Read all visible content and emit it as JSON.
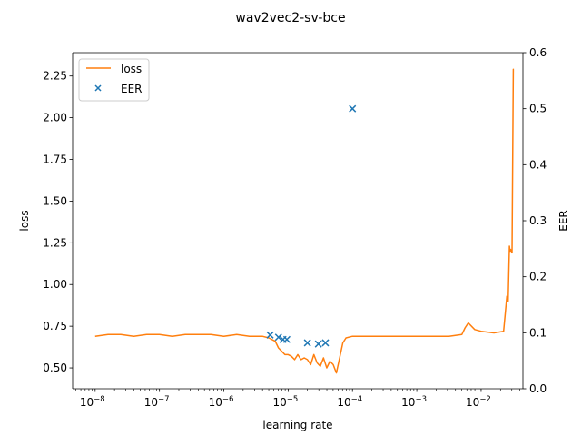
{
  "chart_data": {
    "type": "line",
    "title": "wav2vec2-sv-bce",
    "xlabel": "learning rate",
    "ylabel": "loss",
    "y2label": "EER",
    "xscale": "log",
    "xlim_log10": [
      -8.35,
      -1.35
    ],
    "ylim": [
      0.375,
      2.39
    ],
    "y2lim": [
      0.0,
      0.6
    ],
    "x_ticks": [
      {
        "exp": -8,
        "base": "10",
        "sup": "−8"
      },
      {
        "exp": -7,
        "base": "10",
        "sup": "−7"
      },
      {
        "exp": -6,
        "base": "10",
        "sup": "−6"
      },
      {
        "exp": -5,
        "base": "10",
        "sup": "−5"
      },
      {
        "exp": -4,
        "base": "10",
        "sup": "−4"
      },
      {
        "exp": -3,
        "base": "10",
        "sup": "−3"
      },
      {
        "exp": -2,
        "base": "10",
        "sup": "−2"
      }
    ],
    "y_ticks": [
      "0.50",
      "0.75",
      "1.00",
      "1.25",
      "1.50",
      "1.75",
      "2.00",
      "2.25"
    ],
    "y2_ticks": [
      "0.0",
      "0.1",
      "0.2",
      "0.3",
      "0.4",
      "0.5",
      "0.6"
    ],
    "legend": {
      "position": "top-left"
    },
    "series": [
      {
        "name": "loss",
        "kind": "line",
        "color": "#ff7f0e",
        "axis": "left",
        "x_log10": [
          -8.0,
          -7.8,
          -7.6,
          -7.4,
          -7.2,
          -7.0,
          -6.8,
          -6.6,
          -6.4,
          -6.2,
          -6.0,
          -5.8,
          -5.6,
          -5.4,
          -5.3,
          -5.2,
          -5.15,
          -5.1,
          -5.05,
          -5.0,
          -4.95,
          -4.9,
          -4.85,
          -4.8,
          -4.75,
          -4.7,
          -4.65,
          -4.6,
          -4.55,
          -4.5,
          -4.45,
          -4.4,
          -4.35,
          -4.3,
          -4.25,
          -4.2,
          -4.15,
          -4.1,
          -4.0,
          -3.5,
          -3.0,
          -2.5,
          -2.3,
          -2.25,
          -2.2,
          -2.1,
          -2.0,
          -1.8,
          -1.65,
          -1.6,
          -1.58,
          -1.56,
          -1.55,
          -1.54,
          -1.52,
          -1.5,
          -1.49
        ],
        "y": [
          0.69,
          0.7,
          0.7,
          0.69,
          0.7,
          0.7,
          0.69,
          0.7,
          0.7,
          0.7,
          0.69,
          0.7,
          0.69,
          0.69,
          0.68,
          0.66,
          0.62,
          0.6,
          0.58,
          0.58,
          0.57,
          0.55,
          0.58,
          0.55,
          0.56,
          0.55,
          0.52,
          0.58,
          0.53,
          0.51,
          0.56,
          0.5,
          0.54,
          0.52,
          0.47,
          0.56,
          0.65,
          0.68,
          0.69,
          0.69,
          0.69,
          0.69,
          0.7,
          0.74,
          0.77,
          0.73,
          0.72,
          0.71,
          0.72,
          0.93,
          0.9,
          1.23,
          1.2,
          1.21,
          1.19,
          2.29,
          2.29
        ]
      },
      {
        "name": "EER",
        "kind": "scatter",
        "marker": "x",
        "color": "#1f77b4",
        "axis": "right",
        "x_log10": [
          -5.28,
          -5.15,
          -5.08,
          -5.02,
          -4.7,
          -4.53,
          -4.42,
          -4.0
        ],
        "y": [
          0.096,
          0.092,
          0.088,
          0.088,
          0.082,
          0.08,
          0.082,
          0.5
        ]
      }
    ]
  }
}
